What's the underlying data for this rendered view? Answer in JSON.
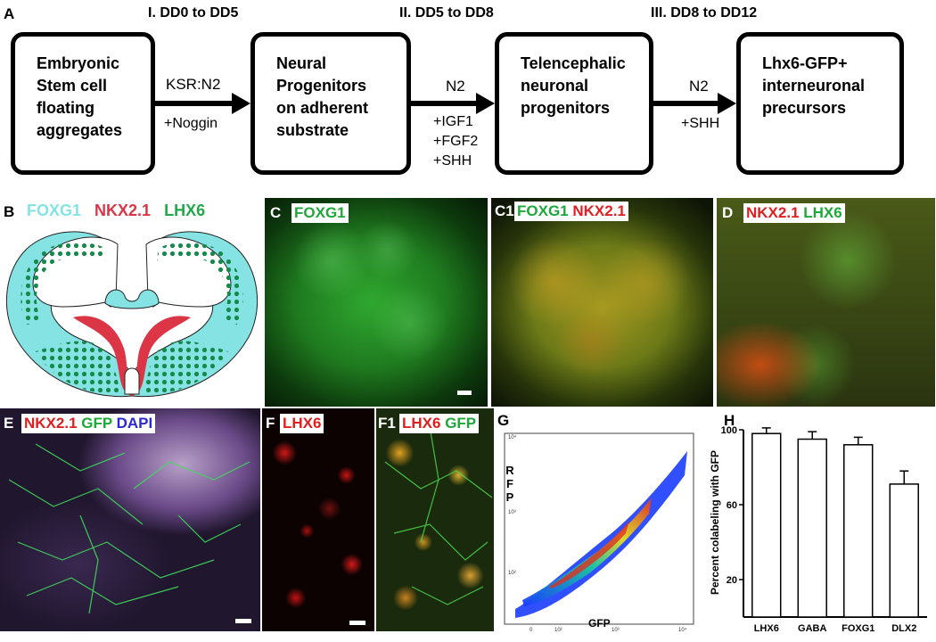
{
  "panel_letters": {
    "A": "A",
    "B": "B",
    "C": "C",
    "C1": "C1",
    "D": "D",
    "E": "E",
    "F": "F",
    "F1": "F1",
    "G": "G",
    "H": "H"
  },
  "phases": [
    "I. DD0 to DD5",
    "II. DD5 to DD8",
    "III. DD8 to DD12"
  ],
  "stages": [
    "Embryonic\nStem cell\nfloating\naggregates",
    "Neural\nProgenitors\non adherent\nsubstrate",
    "Telencephalic\nneuronal\nprogenitors",
    "Lhx6-GFP+\ninterneuronal\nprecursors"
  ],
  "conditions": [
    {
      "above": "KSR:N2",
      "below": "+Noggin"
    },
    {
      "above": "N2",
      "below": "+IGF1\n+FGF2\n+SHH"
    },
    {
      "above": "N2",
      "below": "+SHH"
    }
  ],
  "legend_B": [
    {
      "text": "FOXG1",
      "color": "#86e3e3"
    },
    {
      "text": "NKX2.1",
      "color": "#dc3545"
    },
    {
      "text": "LHX6",
      "color": "#22a84a"
    }
  ],
  "micro_tags": {
    "C": [
      {
        "text": "FOXG1",
        "color": "#1fa83a"
      }
    ],
    "C1": [
      {
        "text": "FOXG1",
        "color": "#1fa83a"
      },
      {
        "text": " NKX2.1",
        "color": "#e02020"
      }
    ],
    "D": [
      {
        "text": "NKX2.1",
        "color": "#e02020"
      },
      {
        "text": " LHX6",
        "color": "#1fa83a"
      }
    ],
    "E": [
      {
        "text": "NKX2.1",
        "color": "#e02020"
      },
      {
        "text": " GFP",
        "color": "#1fa83a"
      },
      {
        "text": " DAPI",
        "color": "#2a2ad0"
      }
    ],
    "F": [
      {
        "text": "LHX6",
        "color": "#e02020"
      }
    ],
    "F1": [
      {
        "text": "LHX6",
        "color": "#e02020"
      },
      {
        "text": " GFP",
        "color": "#1fa83a"
      }
    ]
  },
  "flow_G": {
    "y_label": "RFP",
    "x_label": "GFP",
    "x_ticks": [
      "0",
      "10²",
      "10³",
      "10⁴"
    ],
    "y_ticks": [
      "10⁴",
      "10³",
      "10²"
    ]
  },
  "chart_data": {
    "type": "bar",
    "categories": [
      "LHX6",
      "GABA",
      "FOXG1",
      "DLX2"
    ],
    "values": [
      98,
      95,
      92,
      71
    ],
    "errors": [
      3,
      4,
      4,
      7
    ],
    "ylabel": "Percent colabeling with GFP",
    "yticks": [
      20,
      60,
      100
    ],
    "ylim": [
      0,
      100
    ],
    "grid": false
  }
}
